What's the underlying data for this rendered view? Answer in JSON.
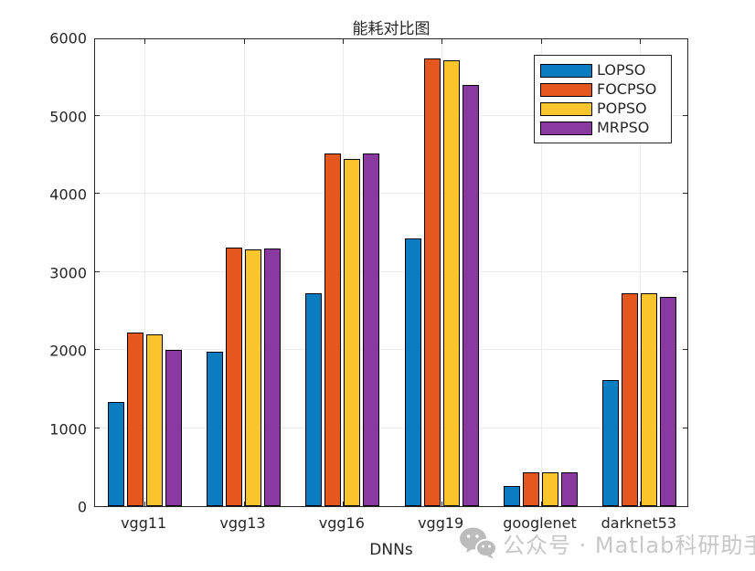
{
  "title": "能耗对比图",
  "xlabel": "DNNs",
  "axis": {
    "color": "#262626",
    "grid_color": "#ebebeb",
    "background": "#ffffff"
  },
  "watermark": {
    "text": "公众号 · Matlab科研助手",
    "icon": "wechat-icon",
    "color": "#c7c7c7"
  },
  "chart_data": {
    "type": "bar",
    "categories": [
      "vgg11",
      "vgg13",
      "vgg16",
      "vgg19",
      "googlenet",
      "darknet53"
    ],
    "series": [
      {
        "name": "LOPSO",
        "color": "#0C7CC0",
        "values": [
          1330,
          1980,
          2720,
          3430,
          260,
          1620
        ]
      },
      {
        "name": "FOCPSO",
        "color": "#E4571E",
        "values": [
          2220,
          3310,
          4520,
          5730,
          430,
          2720
        ]
      },
      {
        "name": "POPSO",
        "color": "#FDC52D",
        "values": [
          2200,
          3290,
          4450,
          5710,
          430,
          2720
        ]
      },
      {
        "name": "MRPSO",
        "color": "#8939A0",
        "values": [
          2000,
          3300,
          4510,
          5390,
          430,
          2680
        ]
      }
    ],
    "ylabel": "",
    "ylim": [
      0,
      6000
    ],
    "yticks": [
      0,
      1000,
      2000,
      3000,
      4000,
      5000,
      6000
    ],
    "grid": true,
    "legend_position": "top-right",
    "bar_edge_color": "#000000"
  }
}
